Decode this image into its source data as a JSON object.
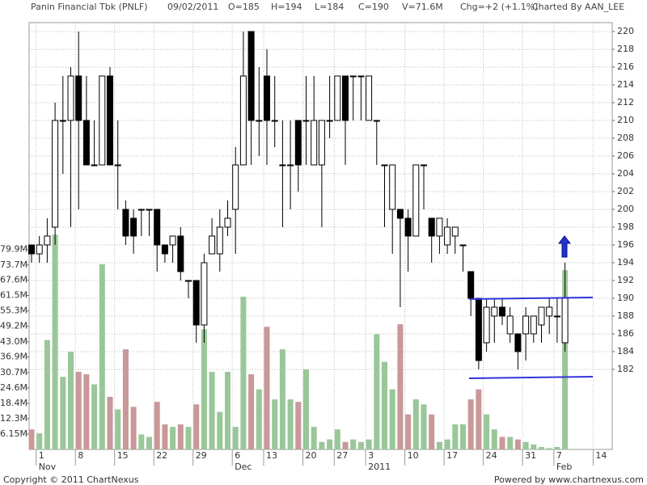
{
  "chart_data": {
    "type": "candlestick",
    "title": "Panin Financial Tbk (PNLF)",
    "header": [
      "09/02/2011",
      "O=185",
      "H=194",
      "L=184",
      "C=190",
      "V=71.6M",
      "Chg=+2 (+1.1%)",
      "Charted By AAN_LEE"
    ],
    "footer_left": "Copyright © 2011 ChartNexus",
    "footer_right": "Powered by www.chartnexus.com",
    "categories": [
      null,
      "1",
      null,
      null,
      null,
      null,
      "8",
      null,
      null,
      null,
      null,
      "15",
      null,
      null,
      null,
      null,
      "22",
      null,
      null,
      null,
      null,
      "29",
      null,
      null,
      null,
      null,
      "6",
      null,
      null,
      null,
      "13",
      null,
      null,
      null,
      null,
      "20",
      null,
      null,
      null,
      "27",
      null,
      null,
      null,
      "3",
      null,
      null,
      null,
      null,
      "10",
      null,
      null,
      null,
      null,
      "17",
      null,
      null,
      null,
      null,
      "24",
      null,
      null,
      null,
      null,
      "31",
      null,
      null,
      null,
      "7",
      null,
      null,
      null,
      null,
      "14"
    ],
    "sublabels": [
      {
        "index": 1,
        "label": "Nov"
      },
      {
        "index": 26,
        "label": "Dec"
      },
      {
        "index": 43,
        "label": "2011"
      },
      {
        "index": 67,
        "label": "Feb"
      }
    ],
    "open": [
      196,
      195,
      196,
      198,
      210,
      210,
      215,
      210,
      205,
      205,
      215,
      205,
      200,
      199,
      200,
      200,
      200,
      196,
      196,
      197,
      192,
      192,
      187,
      195,
      195,
      198,
      200,
      205,
      220,
      210,
      215,
      210,
      205,
      205,
      210,
      210,
      205,
      205,
      210,
      210,
      215,
      215,
      215,
      210,
      210,
      205,
      200,
      200,
      199,
      197,
      205,
      199,
      197,
      196,
      197,
      196,
      193,
      190,
      185,
      188,
      189,
      186,
      186,
      186,
      186,
      187,
      188,
      188,
      185,
      null,
      null,
      null,
      null
    ],
    "high": [
      196,
      197,
      199,
      212,
      215,
      216,
      220,
      215,
      210,
      215,
      216,
      210,
      201,
      200,
      200,
      200,
      200,
      196,
      197,
      198,
      192,
      192,
      195,
      199,
      200,
      201,
      207,
      220,
      220,
      216,
      218,
      215,
      210,
      210,
      210,
      215,
      215,
      210,
      215,
      215,
      215,
      215,
      215,
      215,
      210,
      205,
      205,
      200,
      200,
      205,
      205,
      199,
      199,
      199,
      198,
      196,
      193,
      190,
      190,
      190,
      190,
      189,
      186,
      189,
      188,
      189,
      190,
      190,
      194,
      null,
      null,
      null,
      null
    ],
    "low": [
      194,
      194,
      194,
      196,
      204,
      198,
      200,
      205,
      205,
      205,
      205,
      200,
      196,
      195,
      197,
      197,
      193,
      194,
      194,
      192,
      190,
      185,
      185,
      195,
      193,
      197,
      195,
      205,
      205,
      206,
      205,
      207,
      198,
      200,
      202,
      205,
      205,
      198,
      208,
      210,
      205,
      210,
      210,
      210,
      205,
      198,
      195,
      189,
      193,
      197,
      200,
      194,
      195,
      195,
      195,
      193,
      188,
      182,
      184,
      185,
      187,
      185,
      182,
      183,
      185,
      185,
      186,
      185,
      184,
      null,
      null,
      null,
      null
    ],
    "close": [
      195,
      196,
      197,
      210,
      210,
      215,
      210,
      205,
      205,
      215,
      205,
      205,
      197,
      197,
      200,
      200,
      196,
      195,
      197,
      193,
      192,
      187,
      194,
      197,
      198,
      199,
      205,
      215,
      210,
      210,
      210,
      210,
      205,
      205,
      205,
      210,
      210,
      210,
      210,
      215,
      210,
      215,
      215,
      215,
      210,
      205,
      205,
      199,
      197,
      205,
      205,
      197,
      199,
      198,
      198,
      196,
      190,
      183,
      189,
      189,
      188,
      188,
      184,
      188,
      188,
      189,
      189,
      188,
      190,
      null,
      null,
      null,
      null
    ],
    "volume": [
      8,
      6.5,
      43.7,
      85.8,
      29,
      39,
      31,
      30,
      26,
      74,
      21,
      16,
      40,
      17,
      6,
      5,
      19,
      10,
      9,
      10,
      9,
      18,
      48,
      31,
      15,
      31,
      9,
      61,
      30,
      24,
      49,
      20,
      40,
      20,
      19,
      32,
      9,
      3,
      4,
      8,
      3,
      4,
      3,
      4,
      46,
      35,
      24,
      50,
      14,
      20,
      18,
      14,
      3,
      4,
      10,
      10,
      20,
      24,
      14,
      8,
      5,
      5,
      4,
      3,
      2,
      1,
      0.5,
      1,
      71.6,
      null,
      null,
      null,
      null
    ],
    "ylim": [
      173,
      221
    ],
    "yticks": [
      182,
      184,
      186,
      188,
      190,
      192,
      194,
      196,
      198,
      200,
      202,
      204,
      206,
      208,
      210,
      212,
      214,
      216,
      218,
      220
    ],
    "y2lim": [
      0,
      170.5
    ],
    "y2ticks": [
      {
        "value": 6.15,
        "label": "6.15M"
      },
      {
        "value": 12.3,
        "label": "12.3M"
      },
      {
        "value": 18.4,
        "label": "18.4M"
      },
      {
        "value": 24.6,
        "label": "24.6M"
      },
      {
        "value": 30.7,
        "label": "30.7M"
      },
      {
        "value": 36.9,
        "label": "36.9M"
      },
      {
        "value": 43.0,
        "label": "43.0M"
      },
      {
        "value": 49.2,
        "label": "49.2M"
      },
      {
        "value": 55.3,
        "label": "55.3M"
      },
      {
        "value": 61.5,
        "label": "61.5M"
      },
      {
        "value": 67.6,
        "label": "67.6M"
      },
      {
        "value": 73.7,
        "label": "73.7M"
      },
      {
        "value": 79.9,
        "label": "79.9M"
      }
    ],
    "up_color": "#ffffff",
    "down_color": "#000000",
    "volume_up_color": "#99c799",
    "volume_down_color": "#c99898",
    "grid": true
  }
}
